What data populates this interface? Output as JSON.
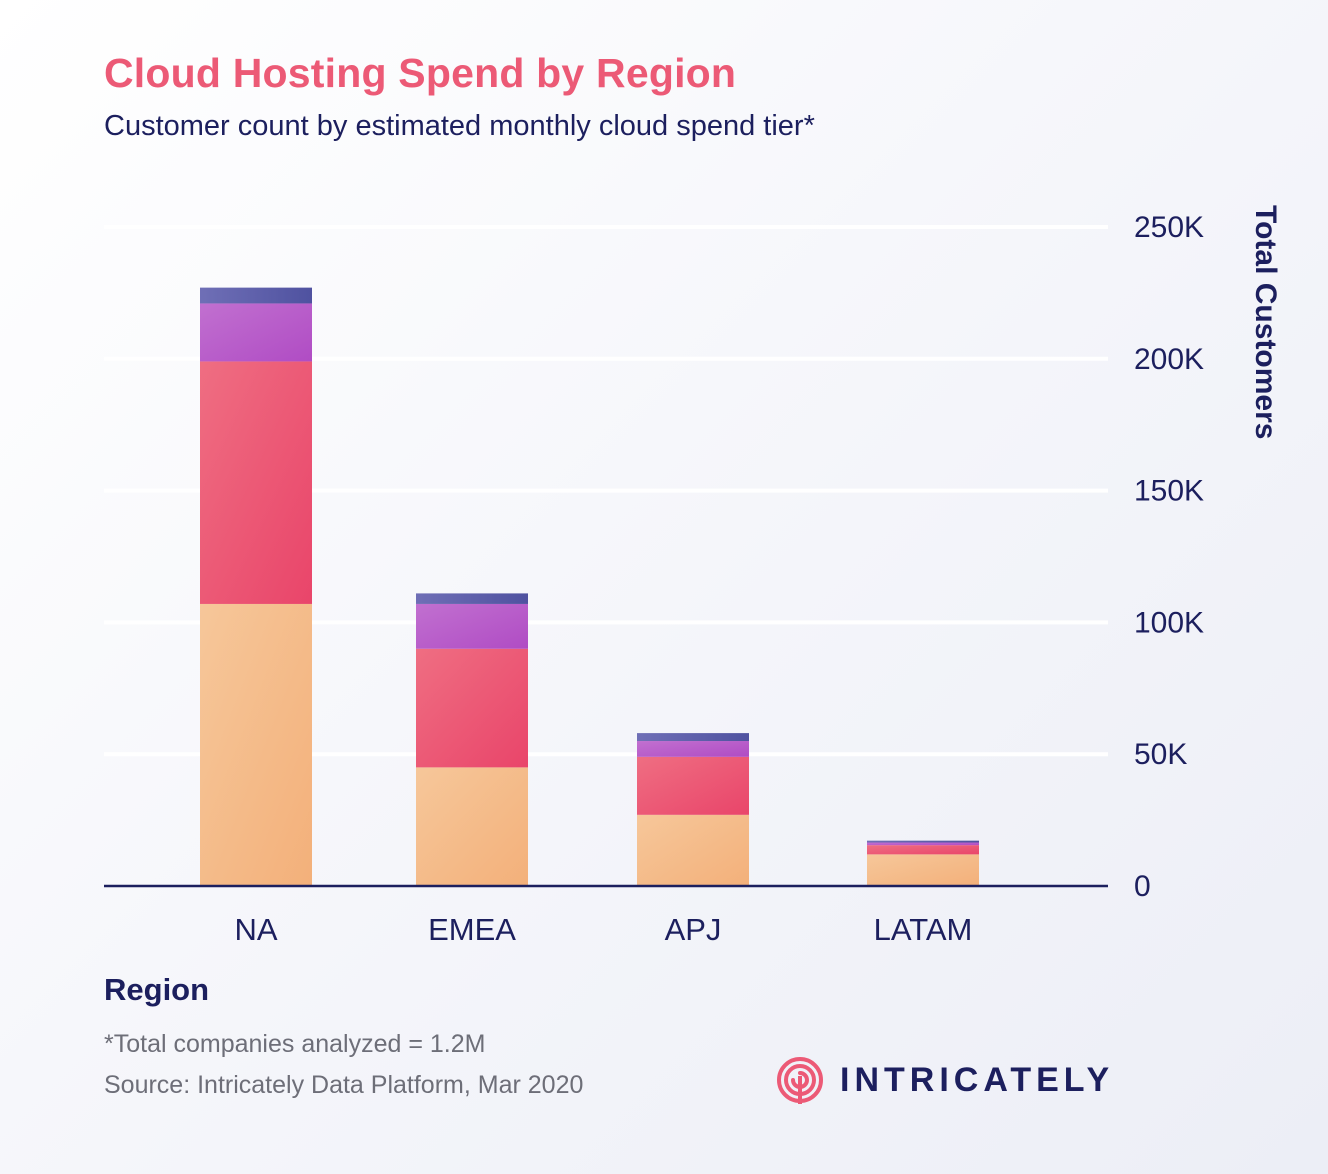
{
  "header": {
    "title": "Cloud Hosting Spend by Region",
    "subtitle": "Customer count by estimated monthly cloud spend tier*"
  },
  "footer": {
    "footnote": "*Total companies analyzed = 1.2M",
    "source": "Source: Intricately Data Platform, Mar 2020",
    "brand": "INTRICATELY",
    "brand_icon": "target-spiral-icon"
  },
  "colors": {
    "title": "#ec5a76",
    "text": "#1c1f5e",
    "tier1": "#f4b27e",
    "tier2": "#e94a69",
    "tier3": "#b356c8",
    "tier4": "#5d5fa7",
    "grid": "#ffffff",
    "axis": "#1c1f5e"
  },
  "chart_data": {
    "type": "bar",
    "stacked": true,
    "title": "Cloud Hosting Spend by Region",
    "subtitle": "Customer count by estimated monthly cloud spend tier*",
    "xlabel": "Region",
    "ylabel": "Total Customers",
    "y_axis_side": "right",
    "ylim": [
      0,
      250000
    ],
    "yticks": [
      0,
      50000,
      100000,
      150000,
      200000,
      250000
    ],
    "ytick_labels": [
      "0",
      "50K",
      "100K",
      "150K",
      "200K",
      "250K"
    ],
    "categories": [
      "NA",
      "EMEA",
      "APJ",
      "LATAM"
    ],
    "grid": true,
    "legend": false,
    "series": [
      {
        "values": [
          107000,
          45000,
          27000,
          12000
        ],
        "color": "#f4b27e"
      },
      {
        "values": [
          92000,
          45000,
          22000,
          3500
        ],
        "color": "#e94a69"
      },
      {
        "values": [
          22000,
          17000,
          6000,
          1000
        ],
        "color": "#b356c8"
      },
      {
        "values": [
          6000,
          4000,
          3000,
          700
        ],
        "color": "#5d5fa7"
      }
    ]
  }
}
